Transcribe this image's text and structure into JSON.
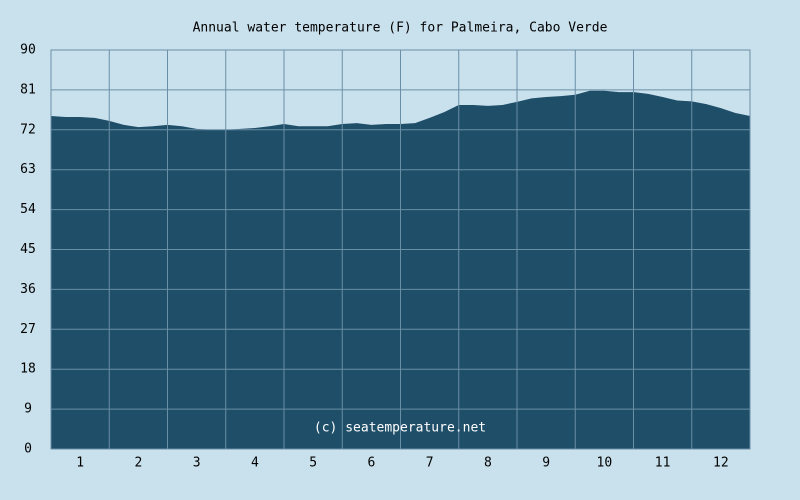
{
  "chart_data": {
    "type": "area",
    "title": "Annual water temperature (F) for Palmeira, Cabo Verde",
    "annotation": "(c) seatemperature.net",
    "x": [
      0,
      0.25,
      0.5,
      0.75,
      1,
      1.25,
      1.5,
      1.75,
      2,
      2.25,
      2.5,
      2.75,
      3,
      3.25,
      3.5,
      3.75,
      4,
      4.25,
      4.5,
      4.75,
      5,
      5.25,
      5.5,
      5.75,
      6,
      6.25,
      6.5,
      6.75,
      7,
      7.25,
      7.5,
      7.75,
      8,
      8.25,
      8.5,
      8.75,
      9,
      9.25,
      9.5,
      9.75,
      10,
      10.25,
      10.5,
      10.75,
      11,
      11.25,
      11.5,
      11.75,
      12
    ],
    "values": [
      75.1,
      74.9,
      74.9,
      74.7,
      74,
      73.1,
      72.6,
      72.8,
      73.1,
      72.8,
      72.2,
      72,
      72,
      72.2,
      72.4,
      72.8,
      73.3,
      72.8,
      72.8,
      72.8,
      73.3,
      73.5,
      73.1,
      73.3,
      73.3,
      73.5,
      74.7,
      76,
      77.6,
      77.6,
      77.4,
      77.6,
      78.3,
      79.1,
      79.4,
      79.6,
      79.9,
      80.8,
      80.8,
      80.5,
      80.5,
      80.1,
      79.4,
      78.6,
      78.4,
      77.8,
      76.9,
      75.8,
      75.1
    ],
    "color": "#1f4e68",
    "xlim": [
      0,
      12
    ],
    "xticks": [
      {
        "value": 0.5,
        "label": "1"
      },
      {
        "value": 1.5,
        "label": "2"
      },
      {
        "value": 2.5,
        "label": "3"
      },
      {
        "value": 3.5,
        "label": "4"
      },
      {
        "value": 4.5,
        "label": "5"
      },
      {
        "value": 5.5,
        "label": "6"
      },
      {
        "value": 6.5,
        "label": "7"
      },
      {
        "value": 7.5,
        "label": "8"
      },
      {
        "value": 8.5,
        "label": "9"
      },
      {
        "value": 9.5,
        "label": "10"
      },
      {
        "value": 10.5,
        "label": "11"
      },
      {
        "value": 11.5,
        "label": "12"
      }
    ],
    "ylim": [
      0,
      90
    ],
    "yticks": [
      0,
      9,
      18,
      27,
      36,
      45,
      54,
      63,
      72,
      81,
      90
    ],
    "grid": true
  }
}
